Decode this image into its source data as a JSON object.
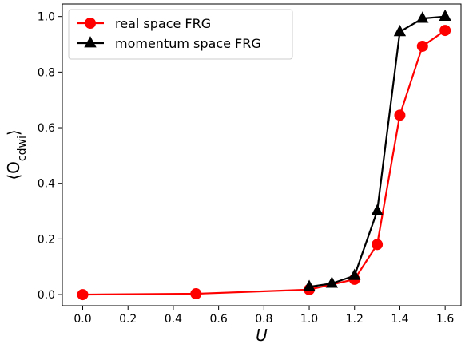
{
  "chart_data": {
    "type": "line",
    "xlabel": "U",
    "ylabel_main": "⟨O",
    "ylabel_sub": "cdwi",
    "ylabel_close": "⟩",
    "xlim": [
      -0.09,
      1.67
    ],
    "ylim": [
      -0.04,
      1.045
    ],
    "x_ticks": [
      0.0,
      0.2,
      0.4,
      0.6,
      0.8,
      1.0,
      1.2,
      1.4,
      1.6
    ],
    "x_tick_labels": [
      "0.0",
      "0.2",
      "0.4",
      "0.6",
      "0.8",
      "1.0",
      "1.2",
      "1.4",
      "1.6"
    ],
    "y_ticks": [
      0.0,
      0.2,
      0.4,
      0.6,
      0.8,
      1.0
    ],
    "y_tick_labels": [
      "0.0",
      "0.2",
      "0.4",
      "0.6",
      "0.8",
      "1.0"
    ],
    "grid": false,
    "legend_position": "top-left",
    "series": [
      {
        "name": "real space FRG",
        "color": "#ff0000",
        "marker": "circle",
        "x": [
          0.0,
          0.5,
          1.0,
          1.2,
          1.3,
          1.4,
          1.5,
          1.6
        ],
        "y": [
          0.0,
          0.003,
          0.018,
          0.055,
          0.18,
          0.645,
          0.893,
          0.95
        ]
      },
      {
        "name": "momentum space FRG",
        "color": "#000000",
        "marker": "triangle",
        "x": [
          1.0,
          1.1,
          1.2,
          1.3,
          1.4,
          1.5,
          1.6
        ],
        "y": [
          0.028,
          0.04,
          0.068,
          0.3,
          0.945,
          0.993,
          1.0
        ]
      }
    ]
  }
}
